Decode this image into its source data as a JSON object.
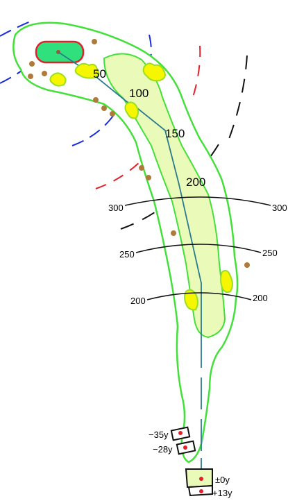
{
  "colors": {
    "rough_outline": "#44e03a",
    "fairway_fill": "#eafab8",
    "green_fill": "#2fe07c",
    "green_border": "#e0202a",
    "bunker_fill": "#f6f600",
    "bunker_border": "#9adf20",
    "tree": "#b07a3a",
    "center_line": "#2a7a8e",
    "arc_line": "#111111",
    "dashed_blue": "#1a2ae0",
    "dashed_red": "#e0202a",
    "dashed_black": "#111111"
  },
  "green_distances": [
    "50",
    "100",
    "150",
    "200"
  ],
  "tee_distances": {
    "left": [
      "300",
      "250",
      "200"
    ],
    "right": [
      "300",
      "250",
      "200"
    ]
  },
  "tees": [
    {
      "name": "tee-back-2",
      "label": "−35y"
    },
    {
      "name": "tee-back-1",
      "label": "−28y"
    },
    {
      "name": "tee-regular",
      "label": "±0y"
    },
    {
      "name": "tee-championship",
      "label": "+13y"
    }
  ],
  "icons": [
    "green-flag-icon",
    "tree-icon",
    "bunker-icon",
    "tee-marker-icon"
  ]
}
